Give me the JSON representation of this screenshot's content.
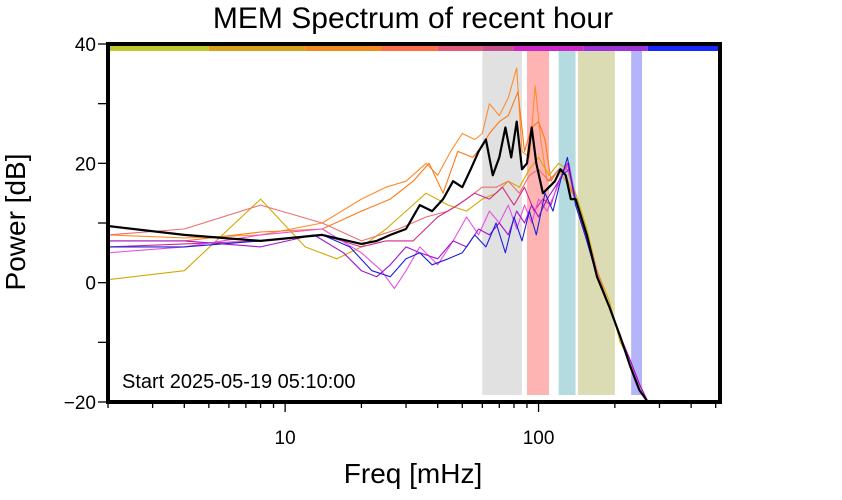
{
  "chart_data": {
    "type": "line",
    "title": "MEM Spectrum of recent hour",
    "xlabel": "Freq [mHz]",
    "ylabel": "Power [dB]",
    "xscale": "log",
    "xlim": [
      2,
      520
    ],
    "ylim": [
      -20,
      40
    ],
    "x_ticks": [
      10,
      100
    ],
    "y_ticks": [
      -20,
      0,
      20,
      40
    ],
    "annotation": "Start 2025-05-19 05:10:00",
    "grid": false,
    "frequency_bands": [
      {
        "range": [
          60,
          86
        ],
        "color": "#e1e1e1"
      },
      {
        "range": [
          90,
          110
        ],
        "color": "#ffb4b4"
      },
      {
        "range": [
          120,
          140
        ],
        "color": "#b4dce0"
      },
      {
        "range": [
          143,
          200
        ],
        "color": "#dcdcb4"
      },
      {
        "range": [
          232,
          256
        ],
        "color": "#b4b4fa"
      }
    ],
    "top_color_bar": [
      {
        "range": [
          2,
          5
        ],
        "color": "#bec82d"
      },
      {
        "range": [
          5,
          12
        ],
        "color": "#d6a21e"
      },
      {
        "range": [
          12,
          24
        ],
        "color": "#f08c1e"
      },
      {
        "range": [
          24,
          40
        ],
        "color": "#ff6e46"
      },
      {
        "range": [
          40,
          60
        ],
        "color": "#e65a78"
      },
      {
        "range": [
          60,
          80
        ],
        "color": "#c8508c"
      },
      {
        "range": [
          80,
          150
        ],
        "color": "#d028c8"
      },
      {
        "range": [
          150,
          270
        ],
        "color": "#a032dc"
      },
      {
        "range": [
          270,
          520
        ],
        "color": "#1428ff"
      }
    ],
    "series": [
      {
        "color": "#ff8c2d",
        "x": [
          2,
          4,
          8,
          14,
          20,
          25,
          30,
          36,
          40,
          45,
          50,
          56,
          60,
          64,
          70,
          76,
          82,
          86,
          92,
          97,
          102,
          108,
          115,
          120,
          128,
          140,
          155,
          170,
          190,
          210,
          230,
          250,
          270
        ],
        "y": [
          8,
          7.5,
          8,
          10,
          14,
          16,
          17,
          20,
          18,
          22,
          25,
          24,
          25,
          30,
          28,
          31,
          36,
          22,
          21,
          33,
          24,
          17,
          18,
          19,
          17,
          14,
          8,
          1,
          -4,
          -9,
          -13,
          -17,
          -20
        ]
      },
      {
        "color": "#ff7814",
        "x": [
          2,
          4,
          8,
          14,
          20,
          26,
          32,
          37,
          42,
          48,
          55,
          60,
          64,
          70,
          76,
          83,
          88,
          94,
          100,
          106,
          112,
          120,
          128,
          140,
          155,
          170,
          190,
          210,
          230,
          250,
          270
        ],
        "y": [
          7,
          7,
          8.5,
          9,
          12,
          14,
          17,
          20,
          15,
          22,
          21,
          23,
          25,
          27,
          28,
          32,
          22,
          26,
          27,
          24,
          17,
          19,
          18,
          14,
          8,
          1,
          -4,
          -9,
          -13,
          -17,
          -20
        ]
      },
      {
        "color": "#d2aa00",
        "x": [
          2,
          4,
          8,
          12,
          16,
          20,
          25,
          30,
          36,
          44,
          52,
          60,
          68,
          76,
          84,
          92,
          100,
          110,
          120,
          130,
          140,
          155,
          170,
          190,
          210,
          230,
          250,
          270
        ],
        "y": [
          0.5,
          2,
          14,
          6,
          4,
          6,
          9,
          12,
          15,
          13,
          12,
          14,
          15,
          17,
          16,
          19,
          21,
          18,
          20,
          19,
          15,
          9,
          2,
          -3,
          -10,
          -13,
          -17,
          -20
        ]
      },
      {
        "color": "#f06e6e",
        "x": [
          2,
          4,
          8,
          14,
          20,
          28,
          36,
          44,
          52,
          60,
          68,
          76,
          84,
          92,
          100,
          110,
          120,
          130,
          140,
          155,
          170,
          190,
          210,
          230,
          250,
          270
        ],
        "y": [
          8,
          9,
          13,
          10,
          7,
          9,
          11,
          12,
          14,
          16,
          16,
          17,
          15,
          18,
          19,
          17,
          19,
          19,
          14,
          8,
          2,
          -4,
          -9,
          -13,
          -17,
          -20
        ]
      },
      {
        "color": "#d2288c",
        "x": [
          2,
          4,
          8,
          14,
          20,
          25,
          32,
          40,
          48,
          56,
          64,
          72,
          80,
          88,
          96,
          104,
          112,
          120,
          130,
          140,
          155,
          170,
          190,
          210,
          230,
          250,
          270
        ],
        "y": [
          6,
          6.5,
          7,
          8,
          6,
          7,
          7,
          11,
          13,
          15,
          14,
          16,
          13,
          16,
          12,
          14,
          13,
          17,
          20,
          14,
          8,
          1,
          -4,
          -9,
          -13,
          -17,
          -20
        ]
      },
      {
        "color": "#e650e6",
        "x": [
          2,
          4,
          8,
          14,
          20,
          24,
          27,
          30,
          34,
          40,
          46,
          52,
          58,
          64,
          70,
          76,
          82,
          88,
          94,
          100,
          108,
          116,
          124,
          132,
          140,
          155,
          170,
          190,
          210,
          230,
          250,
          270
        ],
        "y": [
          5,
          6,
          8,
          9,
          5,
          2,
          -1,
          2,
          6,
          3,
          7,
          11,
          8,
          12,
          10,
          13,
          9,
          13,
          10,
          14,
          12,
          15,
          18,
          20,
          14,
          7,
          1,
          -4,
          -9,
          -13,
          -17,
          -20
        ]
      },
      {
        "color": "#a014d2",
        "x": [
          2,
          4,
          8,
          13,
          17,
          20,
          23,
          26,
          30,
          34,
          40,
          46,
          52,
          58,
          64,
          70,
          76,
          82,
          88,
          94,
          100,
          108,
          116,
          124,
          132,
          140,
          155,
          170,
          190,
          210,
          230,
          250,
          270
        ],
        "y": [
          7,
          7,
          6,
          8,
          5,
          2,
          1,
          3,
          6,
          5,
          4,
          7,
          6,
          9,
          8,
          10,
          8,
          12,
          10,
          13,
          11,
          14,
          16,
          18,
          19,
          14,
          8,
          1,
          -4,
          -9,
          -13,
          -17,
          -20
        ]
      },
      {
        "color": "#1e1edc",
        "x": [
          2,
          4,
          8,
          14,
          18,
          22,
          26,
          30,
          34,
          38,
          44,
          50,
          56,
          62,
          68,
          74,
          80,
          86,
          92,
          98,
          106,
          114,
          122,
          130,
          140,
          155,
          170,
          190,
          210,
          230,
          250,
          270
        ],
        "y": [
          6,
          6,
          7,
          8,
          6,
          2,
          1,
          4,
          5,
          3,
          4,
          5,
          8,
          6,
          10,
          5,
          11,
          7,
          12,
          8,
          15,
          12,
          17,
          21,
          13,
          7,
          1,
          -4,
          -9,
          -14,
          -18,
          -20
        ]
      },
      {
        "color": "#000000",
        "x": [
          2,
          4,
          8,
          14,
          20,
          23,
          26,
          30,
          34,
          38,
          42,
          46,
          50,
          54,
          58,
          62,
          66,
          70,
          74,
          78,
          82,
          86,
          90,
          94,
          98,
          104,
          110,
          116,
          122,
          128,
          134,
          140,
          155,
          170,
          190,
          210,
          230,
          250,
          270
        ],
        "y": [
          9.5,
          8,
          7,
          8,
          6.5,
          7,
          8,
          9,
          13,
          12,
          14,
          17,
          16,
          19,
          22,
          24,
          18,
          21,
          26,
          21,
          27,
          19,
          20,
          26,
          20,
          15,
          16,
          17,
          19,
          18,
          14,
          14,
          8,
          1,
          -4,
          -9,
          -14,
          -18,
          -20
        ]
      }
    ]
  }
}
